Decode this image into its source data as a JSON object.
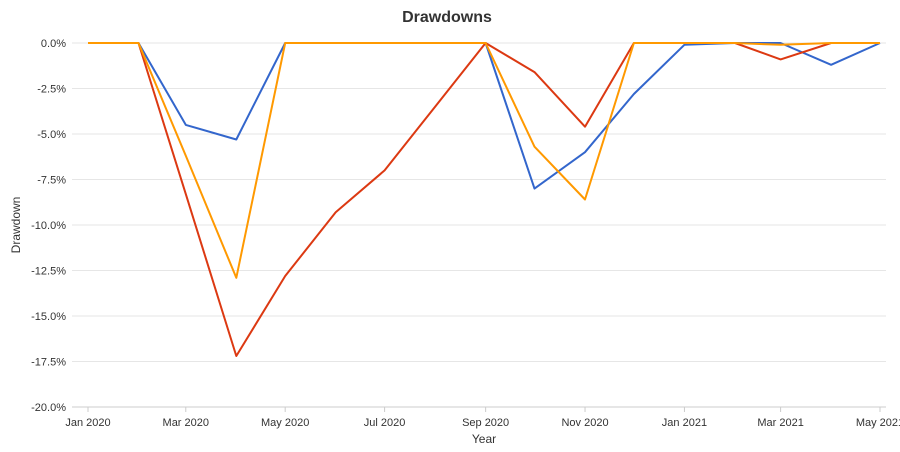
{
  "chart_data": {
    "type": "line",
    "title": "Drawdowns",
    "xlabel": "Year",
    "ylabel": "Drawdown",
    "ylim": [
      -20.0,
      0.0
    ],
    "y_ticks": [
      "0.0%",
      "-2.5%",
      "-5.0%",
      "-7.5%",
      "-10.0%",
      "-12.5%",
      "-15.0%",
      "-17.5%",
      "-20.0%"
    ],
    "y_tick_values": [
      0.0,
      -2.5,
      -5.0,
      -7.5,
      -10.0,
      -12.5,
      -15.0,
      -17.5,
      -20.0
    ],
    "x_ticks": [
      "Jan 2020",
      "Mar 2020",
      "May 2020",
      "Jul 2020",
      "Sep 2020",
      "Nov 2020",
      "Jan 2021",
      "Mar 2021",
      "May 2021"
    ],
    "x_tick_dates": [
      "2020-01-01",
      "2020-03-01",
      "2020-05-01",
      "2020-07-01",
      "2020-09-01",
      "2020-11-01",
      "2021-01-01",
      "2021-03-01",
      "2021-05-01"
    ],
    "x": [
      "2020-01-01",
      "2020-02-01",
      "2020-03-01",
      "2020-04-01",
      "2020-05-01",
      "2020-06-01",
      "2020-07-01",
      "2020-08-01",
      "2020-09-01",
      "2020-10-01",
      "2020-11-01",
      "2020-12-01",
      "2021-01-01",
      "2021-02-01",
      "2021-03-01",
      "2021-04-01",
      "2021-05-01"
    ],
    "grid": true,
    "series": [
      {
        "color": "#3366cc",
        "values": [
          0.0,
          0.0,
          -4.5,
          -5.3,
          0.0,
          0.0,
          0.0,
          0.0,
          0.0,
          -8.0,
          -6.0,
          -2.8,
          -0.1,
          0.0,
          0.0,
          -1.2,
          0.0
        ]
      },
      {
        "color": "#dc3912",
        "values": [
          0.0,
          0.0,
          -8.3,
          -17.2,
          -12.8,
          -9.3,
          -7.0,
          -3.5,
          0.0,
          -1.6,
          -4.6,
          0.0,
          0.0,
          0.0,
          -0.9,
          0.0,
          0.0
        ]
      },
      {
        "color": "#ff9900",
        "values": [
          0.0,
          0.0,
          -6.2,
          -12.9,
          0.0,
          0.0,
          0.0,
          0.0,
          0.0,
          -5.7,
          -8.6,
          0.0,
          0.0,
          0.0,
          -0.1,
          0.0,
          0.0
        ]
      }
    ]
  }
}
